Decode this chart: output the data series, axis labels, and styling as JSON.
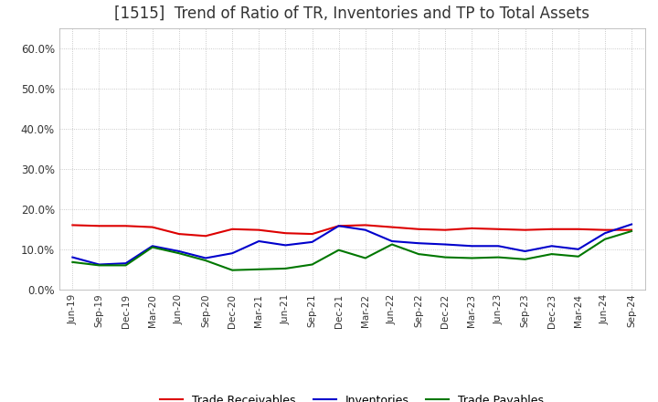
{
  "title": "[1515]  Trend of Ratio of TR, Inventories and TP to Total Assets",
  "title_fontsize": 12,
  "background_color": "#ffffff",
  "grid_color": "#aaaaaa",
  "x_labels": [
    "Jun-19",
    "Sep-19",
    "Dec-19",
    "Mar-20",
    "Jun-20",
    "Sep-20",
    "Dec-20",
    "Mar-21",
    "Jun-21",
    "Sep-21",
    "Dec-21",
    "Mar-22",
    "Jun-22",
    "Sep-22",
    "Dec-22",
    "Mar-23",
    "Jun-23",
    "Sep-23",
    "Dec-23",
    "Mar-24",
    "Jun-24",
    "Sep-24"
  ],
  "trade_receivables": [
    0.16,
    0.158,
    0.158,
    0.155,
    0.138,
    0.133,
    0.15,
    0.148,
    0.14,
    0.138,
    0.158,
    0.16,
    0.155,
    0.15,
    0.148,
    0.152,
    0.15,
    0.148,
    0.15,
    0.15,
    0.148,
    0.148
  ],
  "inventories": [
    0.08,
    0.062,
    0.065,
    0.108,
    0.095,
    0.078,
    0.09,
    0.12,
    0.11,
    0.118,
    0.158,
    0.148,
    0.12,
    0.115,
    0.112,
    0.108,
    0.108,
    0.095,
    0.108,
    0.1,
    0.14,
    0.162
  ],
  "trade_payables": [
    0.068,
    0.06,
    0.06,
    0.105,
    0.09,
    0.072,
    0.048,
    0.05,
    0.052,
    0.062,
    0.098,
    0.078,
    0.112,
    0.088,
    0.08,
    0.078,
    0.08,
    0.075,
    0.088,
    0.082,
    0.125,
    0.145
  ],
  "tr_color": "#dd0000",
  "inv_color": "#0000cc",
  "tp_color": "#007700",
  "ylim": [
    0.0,
    0.65
  ],
  "yticks": [
    0.0,
    0.1,
    0.2,
    0.3,
    0.4,
    0.5,
    0.6
  ],
  "ytick_labels": [
    "0.0%",
    "10.0%",
    "20.0%",
    "30.0%",
    "40.0%",
    "50.0%",
    "60.0%"
  ],
  "legend_labels": [
    "Trade Receivables",
    "Inventories",
    "Trade Payables"
  ]
}
